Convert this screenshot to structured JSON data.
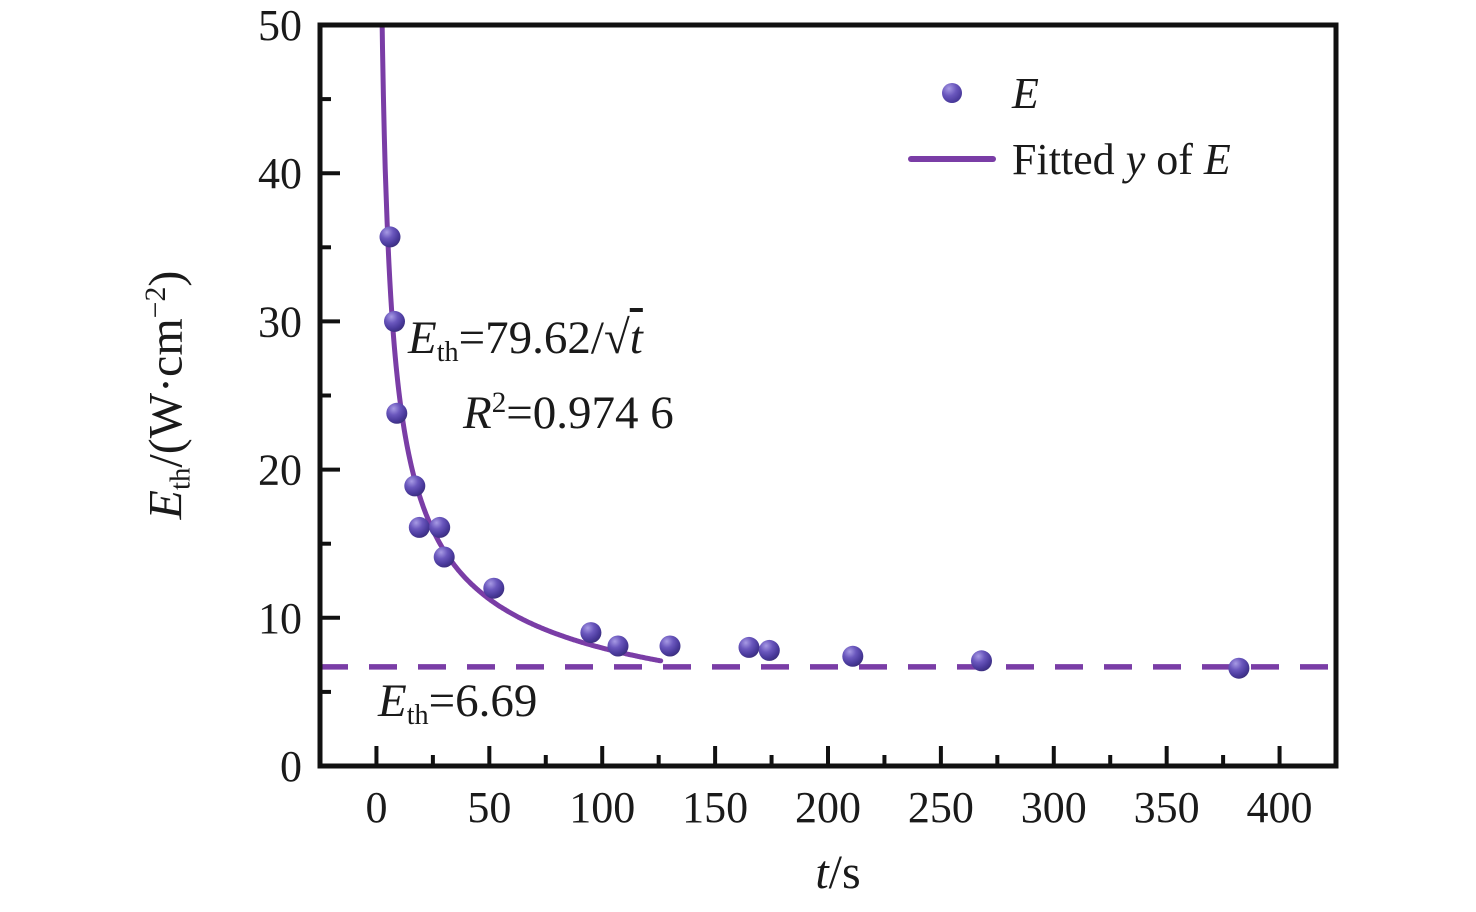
{
  "figure": {
    "background": "#ffffff",
    "colors": {
      "frame": "#111111",
      "text": "#1a1a1a",
      "purple_line": "#7a3da6",
      "marker_highlight": "#a79ae4",
      "marker_mid": "#6a57bd",
      "marker_base": "#4a3a9c",
      "marker_edge": "#372b76"
    }
  },
  "chart_data": {
    "type": "scatter",
    "title": "",
    "xlabel": "t/s",
    "ylabel": "E_th/(W·cm−2)",
    "xlim": [
      -25,
      425
    ],
    "ylim": [
      0,
      50
    ],
    "grid": false,
    "legend_position": "top-right",
    "x_major_ticks": [
      0,
      50,
      100,
      150,
      200,
      250,
      300,
      350,
      400
    ],
    "x_minor_ticks": [
      25,
      75,
      125,
      175,
      225,
      275,
      325,
      375
    ],
    "y_major_ticks": [
      0,
      10,
      20,
      30,
      40,
      50
    ],
    "y_minor_ticks": [
      5,
      15,
      25,
      35,
      45
    ],
    "series": [
      {
        "name": "E",
        "type": "scatter",
        "points": [
          [
            6,
            35.7
          ],
          [
            8,
            30.0
          ],
          [
            9,
            23.8
          ],
          [
            17,
            18.9
          ],
          [
            19,
            16.1
          ],
          [
            28,
            16.1
          ],
          [
            30,
            14.1
          ],
          [
            52,
            12.0
          ],
          [
            95,
            9.0
          ],
          [
            107,
            8.1
          ],
          [
            130,
            8.1
          ],
          [
            165,
            8.0
          ],
          [
            174,
            7.8
          ],
          [
            211,
            7.4
          ],
          [
            268,
            7.1
          ],
          [
            382,
            6.6
          ]
        ]
      },
      {
        "name": "Fitted y of E",
        "type": "fit-curve",
        "formula": "E_th = 79.62 / sqrt(t)",
        "coefficient": 79.62,
        "t_start": 2.3,
        "t_end": 126
      },
      {
        "name": "threshold",
        "type": "dashed-hline",
        "value": 6.69
      }
    ],
    "r_squared": "0.974 6",
    "annotations": [
      "E_th=79.62/√t",
      "R²=0.974 6",
      "E_th=6.69"
    ],
    "legend_entries": [
      "E",
      "Fitted y of E"
    ]
  },
  "text": {
    "ylabel": {
      "var": "E",
      "sub": "th",
      "mid": "/(W·cm",
      "sup": "−2",
      "end": ")"
    },
    "xlabel": {
      "var": "t",
      "end": "/s"
    },
    "legend": {
      "scatter_label": "E",
      "fit_pre": "Fitted ",
      "fit_y": "y",
      "fit_mid": " of ",
      "fit_e": "E"
    },
    "eq_fit": {
      "var": "E",
      "sub": "th",
      "rhs": "=79.62/",
      "radical": "√",
      "arg": "t"
    },
    "eq_r2": {
      "var": "R",
      "sup": "2",
      "rhs": "=0.974 6"
    },
    "eq_th": {
      "var": "E",
      "sub": "th",
      "rhs": "=6.69"
    }
  }
}
